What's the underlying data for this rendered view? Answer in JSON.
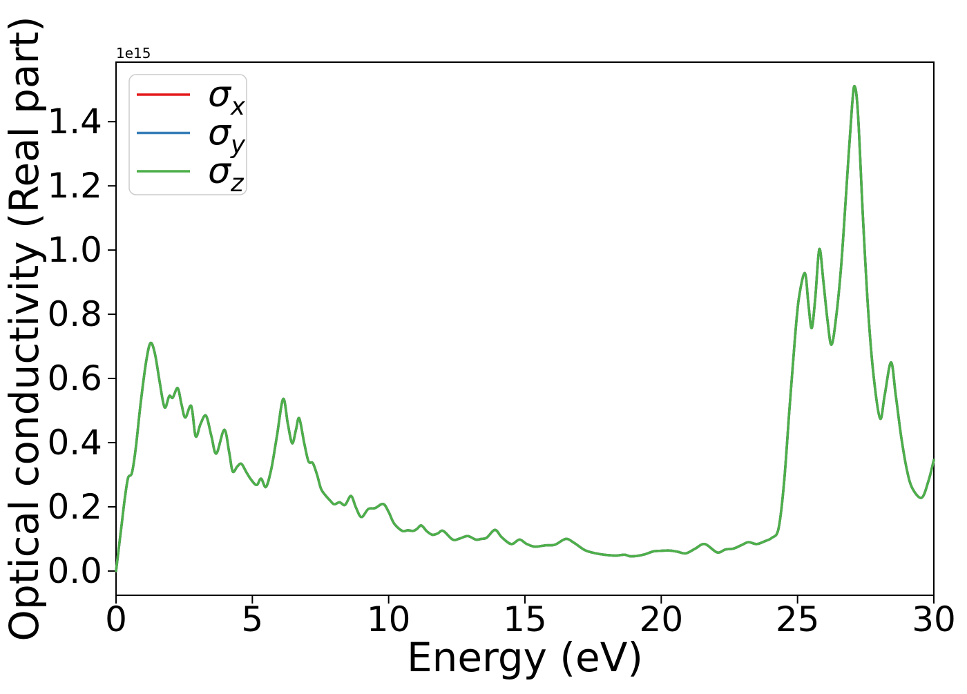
{
  "chart_data": {
    "type": "line",
    "title": "",
    "xlabel": "Energy (eV)",
    "ylabel": "Optical conductivity (Real part)",
    "offset_text": "1e15",
    "units_scale": "1e15",
    "xlim": [
      0,
      30
    ],
    "ylim": [
      -0.0755,
      1.5855
    ],
    "xticks": [
      0,
      5,
      10,
      15,
      20,
      25,
      30
    ],
    "xtick_labels": [
      "0",
      "5",
      "10",
      "15",
      "20",
      "25",
      "30"
    ],
    "yticks": [
      0.0,
      0.2,
      0.4,
      0.6,
      0.8,
      1.0,
      1.2,
      1.4
    ],
    "ytick_labels": [
      "0.0",
      "0.2",
      "0.4",
      "0.6",
      "0.8",
      "1.0",
      "1.2",
      "1.4"
    ],
    "grid": false,
    "legend_position": "upper left",
    "overlap_note": "the three curves coincide exactly; only the topmost green sigma_z trace is visible",
    "x": [
      0,
      0.1,
      0.22,
      0.32,
      0.44,
      0.58,
      0.72,
      0.9,
      1.1,
      1.26,
      1.42,
      1.6,
      1.78,
      1.95,
      2.08,
      2.26,
      2.4,
      2.54,
      2.76,
      2.92,
      3.1,
      3.3,
      3.5,
      3.68,
      3.97,
      4.15,
      4.28,
      4.45,
      4.6,
      4.78,
      4.95,
      5.16,
      5.32,
      5.5,
      5.7,
      5.9,
      6.13,
      6.3,
      6.46,
      6.6,
      6.72,
      6.9,
      7.06,
      7.22,
      7.38,
      7.52,
      7.68,
      7.85,
      8.0,
      8.2,
      8.4,
      8.62,
      8.8,
      9.0,
      9.25,
      9.5,
      9.8,
      10.0,
      10.2,
      10.5,
      10.7,
      10.9,
      11.05,
      11.2,
      11.4,
      11.6,
      11.8,
      12.0,
      12.35,
      12.6,
      12.9,
      13.2,
      13.4,
      13.6,
      13.9,
      14.15,
      14.5,
      14.8,
      15.05,
      15.35,
      15.75,
      16.1,
      16.5,
      16.8,
      17.2,
      17.6,
      18.0,
      18.35,
      18.65,
      18.85,
      19.1,
      19.4,
      19.7,
      20.0,
      20.3,
      20.6,
      20.9,
      21.25,
      21.6,
      22.05,
      22.35,
      22.65,
      22.95,
      23.2,
      23.5,
      23.8,
      24.05,
      24.3,
      24.5,
      24.7,
      24.9,
      25.05,
      25.27,
      25.4,
      25.52,
      25.65,
      25.8,
      25.95,
      26.1,
      26.24,
      26.4,
      26.6,
      26.8,
      27.0,
      27.1,
      27.22,
      27.4,
      27.6,
      27.8,
      28.03,
      28.2,
      28.43,
      28.6,
      28.8,
      29.0,
      29.2,
      29.55,
      29.8,
      30.0
    ],
    "series": [
      {
        "id": "sigma-x",
        "label": "σx",
        "label_main": "σ",
        "label_sub": "x",
        "color": "#e41a1c",
        "values": [
          0,
          0.07,
          0.155,
          0.225,
          0.29,
          0.305,
          0.38,
          0.52,
          0.65,
          0.71,
          0.68,
          0.59,
          0.51,
          0.545,
          0.54,
          0.57,
          0.52,
          0.478,
          0.514,
          0.42,
          0.458,
          0.484,
          0.42,
          0.366,
          0.44,
          0.37,
          0.31,
          0.326,
          0.334,
          0.308,
          0.285,
          0.268,
          0.288,
          0.262,
          0.32,
          0.42,
          0.536,
          0.46,
          0.398,
          0.44,
          0.476,
          0.4,
          0.342,
          0.336,
          0.298,
          0.256,
          0.236,
          0.22,
          0.208,
          0.214,
          0.206,
          0.234,
          0.198,
          0.168,
          0.193,
          0.196,
          0.209,
          0.184,
          0.148,
          0.125,
          0.127,
          0.125,
          0.132,
          0.142,
          0.124,
          0.113,
          0.117,
          0.125,
          0.098,
          0.101,
          0.109,
          0.098,
          0.1,
          0.104,
          0.128,
          0.105,
          0.084,
          0.098,
          0.085,
          0.076,
          0.08,
          0.082,
          0.1,
          0.088,
          0.065,
          0.055,
          0.05,
          0.048,
          0.051,
          0.046,
          0.047,
          0.052,
          0.061,
          0.063,
          0.064,
          0.06,
          0.055,
          0.07,
          0.084,
          0.058,
          0.067,
          0.07,
          0.081,
          0.09,
          0.084,
          0.093,
          0.103,
          0.131,
          0.27,
          0.5,
          0.72,
          0.85,
          0.928,
          0.83,
          0.757,
          0.85,
          1.003,
          0.9,
          0.78,
          0.705,
          0.78,
          0.95,
          1.2,
          1.45,
          1.51,
          1.42,
          1.1,
          0.8,
          0.6,
          0.475,
          0.55,
          0.65,
          0.55,
          0.42,
          0.32,
          0.26,
          0.228,
          0.28,
          0.346
        ]
      },
      {
        "id": "sigma-y",
        "label": "σy",
        "label_main": "σ",
        "label_sub": "y",
        "color": "#377eb8",
        "values": [
          0,
          0.07,
          0.155,
          0.225,
          0.29,
          0.305,
          0.38,
          0.52,
          0.65,
          0.71,
          0.68,
          0.59,
          0.51,
          0.545,
          0.54,
          0.57,
          0.52,
          0.478,
          0.514,
          0.42,
          0.458,
          0.484,
          0.42,
          0.366,
          0.44,
          0.37,
          0.31,
          0.326,
          0.334,
          0.308,
          0.285,
          0.268,
          0.288,
          0.262,
          0.32,
          0.42,
          0.536,
          0.46,
          0.398,
          0.44,
          0.476,
          0.4,
          0.342,
          0.336,
          0.298,
          0.256,
          0.236,
          0.22,
          0.208,
          0.214,
          0.206,
          0.234,
          0.198,
          0.168,
          0.193,
          0.196,
          0.209,
          0.184,
          0.148,
          0.125,
          0.127,
          0.125,
          0.132,
          0.142,
          0.124,
          0.113,
          0.117,
          0.125,
          0.098,
          0.101,
          0.109,
          0.098,
          0.1,
          0.104,
          0.128,
          0.105,
          0.084,
          0.098,
          0.085,
          0.076,
          0.08,
          0.082,
          0.1,
          0.088,
          0.065,
          0.055,
          0.05,
          0.048,
          0.051,
          0.046,
          0.047,
          0.052,
          0.061,
          0.063,
          0.064,
          0.06,
          0.055,
          0.07,
          0.084,
          0.058,
          0.067,
          0.07,
          0.081,
          0.09,
          0.084,
          0.093,
          0.103,
          0.131,
          0.27,
          0.5,
          0.72,
          0.85,
          0.928,
          0.83,
          0.757,
          0.85,
          1.003,
          0.9,
          0.78,
          0.705,
          0.78,
          0.95,
          1.2,
          1.45,
          1.51,
          1.42,
          1.1,
          0.8,
          0.6,
          0.475,
          0.55,
          0.65,
          0.55,
          0.42,
          0.32,
          0.26,
          0.228,
          0.28,
          0.346
        ]
      },
      {
        "id": "sigma-z",
        "label": "σz",
        "label_main": "σ",
        "label_sub": "z",
        "color": "#4daf4a",
        "values": [
          0,
          0.07,
          0.155,
          0.225,
          0.29,
          0.305,
          0.38,
          0.52,
          0.65,
          0.71,
          0.68,
          0.59,
          0.51,
          0.545,
          0.54,
          0.57,
          0.52,
          0.478,
          0.514,
          0.42,
          0.458,
          0.484,
          0.42,
          0.366,
          0.44,
          0.37,
          0.31,
          0.326,
          0.334,
          0.308,
          0.285,
          0.268,
          0.288,
          0.262,
          0.32,
          0.42,
          0.536,
          0.46,
          0.398,
          0.44,
          0.476,
          0.4,
          0.342,
          0.336,
          0.298,
          0.256,
          0.236,
          0.22,
          0.208,
          0.214,
          0.206,
          0.234,
          0.198,
          0.168,
          0.193,
          0.196,
          0.209,
          0.184,
          0.148,
          0.125,
          0.127,
          0.125,
          0.132,
          0.142,
          0.124,
          0.113,
          0.117,
          0.125,
          0.098,
          0.101,
          0.109,
          0.098,
          0.1,
          0.104,
          0.128,
          0.105,
          0.084,
          0.098,
          0.085,
          0.076,
          0.08,
          0.082,
          0.1,
          0.088,
          0.065,
          0.055,
          0.05,
          0.048,
          0.051,
          0.046,
          0.047,
          0.052,
          0.061,
          0.063,
          0.064,
          0.06,
          0.055,
          0.07,
          0.084,
          0.058,
          0.067,
          0.07,
          0.081,
          0.09,
          0.084,
          0.093,
          0.103,
          0.131,
          0.27,
          0.5,
          0.72,
          0.85,
          0.928,
          0.83,
          0.757,
          0.85,
          1.003,
          0.9,
          0.78,
          0.705,
          0.78,
          0.95,
          1.2,
          1.45,
          1.51,
          1.42,
          1.1,
          0.8,
          0.6,
          0.475,
          0.55,
          0.65,
          0.55,
          0.42,
          0.32,
          0.26,
          0.228,
          0.28,
          0.346
        ]
      }
    ],
    "style": {
      "spine_color": "#000000",
      "background": "#ffffff",
      "legend_border": "#cccccc"
    }
  }
}
